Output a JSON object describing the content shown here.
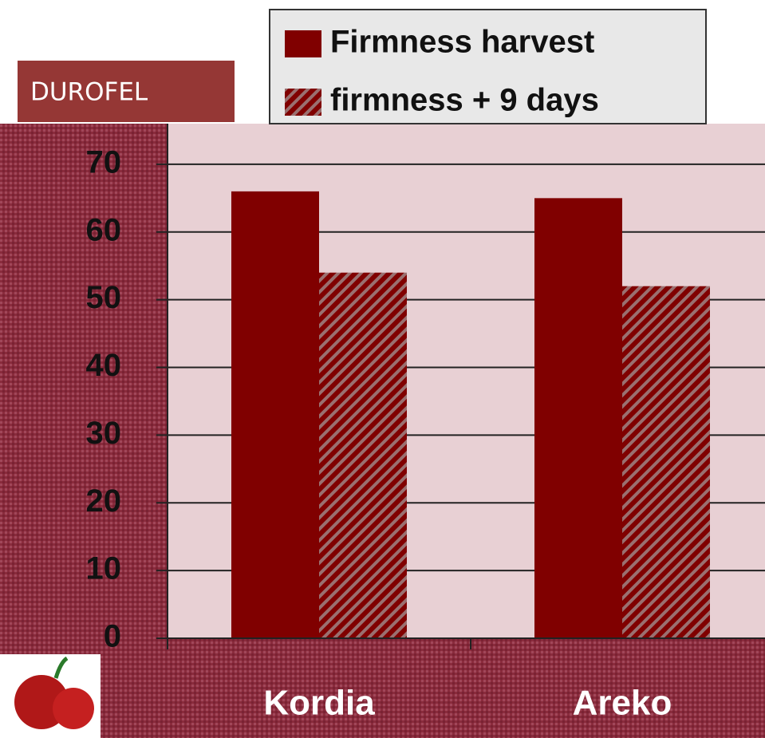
{
  "chart_data": {
    "type": "bar",
    "label": "DUROFEL",
    "categories": [
      "Kordia",
      "Areko"
    ],
    "series": [
      {
        "name": "Firmness harvest",
        "color": "#800000",
        "values": [
          66,
          65
        ]
      },
      {
        "name": "firmness + 9 days",
        "color": "#800000",
        "pattern": "hatch",
        "values": [
          54,
          52
        ]
      }
    ],
    "ylim": [
      0,
      76
    ],
    "yticks": [
      0,
      10,
      20,
      30,
      40,
      50,
      60,
      70
    ],
    "grid": true
  }
}
